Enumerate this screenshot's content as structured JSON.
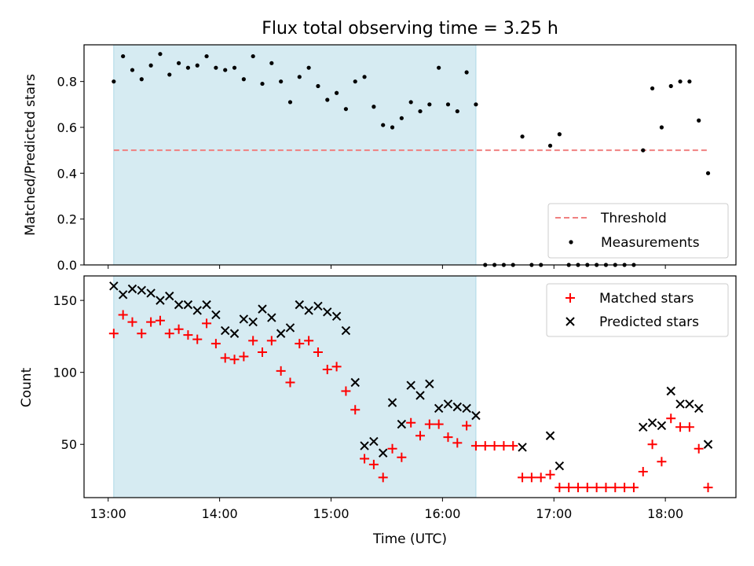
{
  "chart_data": [
    {
      "type": "scatter",
      "title": "Flux total observing time = 3.25 h",
      "xlabel": "",
      "ylabel": "Matched/Predicted stars",
      "xlim": [
        "12:47",
        "18:38"
      ],
      "ylim": [
        0,
        0.96
      ],
      "yticks": [
        0.0,
        0.2,
        0.4,
        0.6,
        0.8
      ],
      "yticklabels": [
        "0.0",
        "0.2",
        "0.4",
        "0.6",
        "0.8"
      ],
      "shaded_span": [
        "13:03",
        "16:18"
      ],
      "threshold": {
        "name": "Threshold",
        "value": 0.5,
        "x_start": "13:03",
        "x_end": "18:23",
        "color": "#f08080"
      },
      "legend": {
        "position": "bottom-right",
        "entries": [
          "Threshold",
          "Measurements"
        ]
      },
      "series": [
        {
          "name": "Measurements",
          "marker": "dot",
          "color": "#000000",
          "x": [
            "13:03",
            "13:08",
            "13:13",
            "13:18",
            "13:23",
            "13:28",
            "13:33",
            "13:38",
            "13:43",
            "13:48",
            "13:53",
            "13:58",
            "14:03",
            "14:08",
            "14:13",
            "14:18",
            "14:23",
            "14:28",
            "14:33",
            "14:38",
            "14:43",
            "14:48",
            "14:53",
            "14:58",
            "15:03",
            "15:08",
            "15:13",
            "15:18",
            "15:23",
            "15:28",
            "15:33",
            "15:38",
            "15:43",
            "15:48",
            "15:53",
            "15:58",
            "16:03",
            "16:08",
            "16:13",
            "16:18",
            "16:23",
            "16:28",
            "16:33",
            "16:38",
            "16:43",
            "16:48",
            "16:53",
            "16:58",
            "17:03",
            "17:08",
            "17:13",
            "17:18",
            "17:23",
            "17:28",
            "17:33",
            "17:38",
            "17:43",
            "17:48",
            "17:53",
            "17:58",
            "18:03",
            "18:08",
            "18:13",
            "18:18",
            "18:23"
          ],
          "values": [
            0.8,
            0.91,
            0.85,
            0.81,
            0.87,
            0.92,
            0.83,
            0.88,
            0.86,
            0.87,
            0.91,
            0.86,
            0.85,
            0.86,
            0.81,
            0.91,
            0.79,
            0.88,
            0.8,
            0.71,
            0.82,
            0.86,
            0.78,
            0.72,
            0.75,
            0.68,
            0.8,
            0.82,
            0.69,
            0.61,
            0.6,
            0.64,
            0.71,
            0.67,
            0.7,
            0.86,
            0.7,
            0.67,
            0.84,
            0.7,
            0.0,
            0.0,
            0.0,
            0.0,
            0.56,
            0.0,
            0.0,
            0.52,
            0.57,
            0.0,
            0.0,
            0.0,
            0.0,
            0.0,
            0.0,
            0.0,
            0.0,
            0.5,
            0.77,
            0.6,
            0.78,
            0.8,
            0.8,
            0.63,
            0.4
          ]
        }
      ]
    },
    {
      "type": "scatter",
      "title": "",
      "xlabel": "Time (UTC)",
      "ylabel": "Count",
      "xlim": [
        "12:47",
        "18:38"
      ],
      "ylim": [
        13,
        167
      ],
      "xticks": [
        "13:00",
        "14:00",
        "15:00",
        "16:00",
        "17:00",
        "18:00"
      ],
      "xticklabels": [
        "13:00",
        "14:00",
        "15:00",
        "16:00",
        "17:00",
        "18:00"
      ],
      "yticks": [
        50,
        100,
        150
      ],
      "yticklabels": [
        "50",
        "100",
        "150"
      ],
      "shaded_span": [
        "13:03",
        "16:18"
      ],
      "legend": {
        "position": "top-right",
        "entries": [
          "Matched stars",
          "Predicted stars"
        ]
      },
      "series": [
        {
          "name": "Matched stars",
          "marker": "plus",
          "color": "#ff0000",
          "x": [
            "13:03",
            "13:08",
            "13:13",
            "13:18",
            "13:23",
            "13:28",
            "13:33",
            "13:38",
            "13:43",
            "13:48",
            "13:53",
            "13:58",
            "14:03",
            "14:08",
            "14:13",
            "14:18",
            "14:23",
            "14:28",
            "14:33",
            "14:38",
            "14:43",
            "14:48",
            "14:53",
            "14:58",
            "15:03",
            "15:08",
            "15:13",
            "15:18",
            "15:23",
            "15:28",
            "15:33",
            "15:38",
            "15:43",
            "15:48",
            "15:53",
            "15:58",
            "16:03",
            "16:08",
            "16:13",
            "16:18",
            "16:23",
            "16:28",
            "16:33",
            "16:38",
            "16:43",
            "16:48",
            "16:53",
            "16:58",
            "17:03",
            "17:08",
            "17:13",
            "17:18",
            "17:23",
            "17:28",
            "17:33",
            "17:38",
            "17:43",
            "17:48",
            "17:53",
            "17:58",
            "18:03",
            "18:08",
            "18:13",
            "18:18",
            "18:23"
          ],
          "values": [
            127,
            140,
            135,
            127,
            135,
            136,
            127,
            130,
            126,
            123,
            134,
            120,
            110,
            109,
            111,
            122,
            114,
            122,
            101,
            93,
            120,
            122,
            114,
            102,
            104,
            87,
            74,
            40,
            36,
            27,
            47,
            41,
            65,
            56,
            64,
            64,
            55,
            51,
            63,
            49,
            49,
            49,
            49,
            49,
            27,
            27,
            27,
            29,
            20,
            20,
            20,
            20,
            20,
            20,
            20,
            20,
            20,
            31,
            50,
            38,
            68,
            62,
            62,
            47,
            20
          ]
        },
        {
          "name": "Predicted stars",
          "marker": "x",
          "color": "#000000",
          "x": [
            "13:03",
            "13:08",
            "13:13",
            "13:18",
            "13:23",
            "13:28",
            "13:33",
            "13:38",
            "13:43",
            "13:48",
            "13:53",
            "13:58",
            "14:03",
            "14:08",
            "14:13",
            "14:18",
            "14:23",
            "14:28",
            "14:33",
            "14:38",
            "14:43",
            "14:48",
            "14:53",
            "14:58",
            "15:03",
            "15:08",
            "15:13",
            "15:18",
            "15:23",
            "15:28",
            "15:33",
            "15:38",
            "15:43",
            "15:48",
            "15:53",
            "15:58",
            "16:03",
            "16:08",
            "16:13",
            "16:18",
            "16:23",
            "16:28",
            "16:33",
            "16:38",
            "16:43",
            "16:48",
            "16:53",
            "16:58",
            "17:03",
            "17:08",
            "17:13",
            "17:18",
            "17:23",
            "17:28",
            "17:33",
            "17:38",
            "17:43",
            "17:48",
            "17:53",
            "17:58",
            "18:03",
            "18:08",
            "18:13",
            "18:18",
            "18:23"
          ],
          "values": [
            160,
            154,
            158,
            157,
            155,
            150,
            153,
            147,
            147,
            143,
            147,
            140,
            129,
            127,
            137,
            135,
            144,
            138,
            127,
            131,
            147,
            143,
            146,
            142,
            139,
            129,
            93,
            49,
            52,
            44,
            79,
            64,
            91,
            84,
            92,
            75,
            78,
            76,
            75,
            70,
            null,
            null,
            null,
            null,
            48,
            null,
            null,
            56,
            35,
            null,
            null,
            null,
            null,
            null,
            null,
            null,
            null,
            62,
            65,
            63,
            87,
            78,
            78,
            75,
            50
          ]
        }
      ]
    }
  ]
}
